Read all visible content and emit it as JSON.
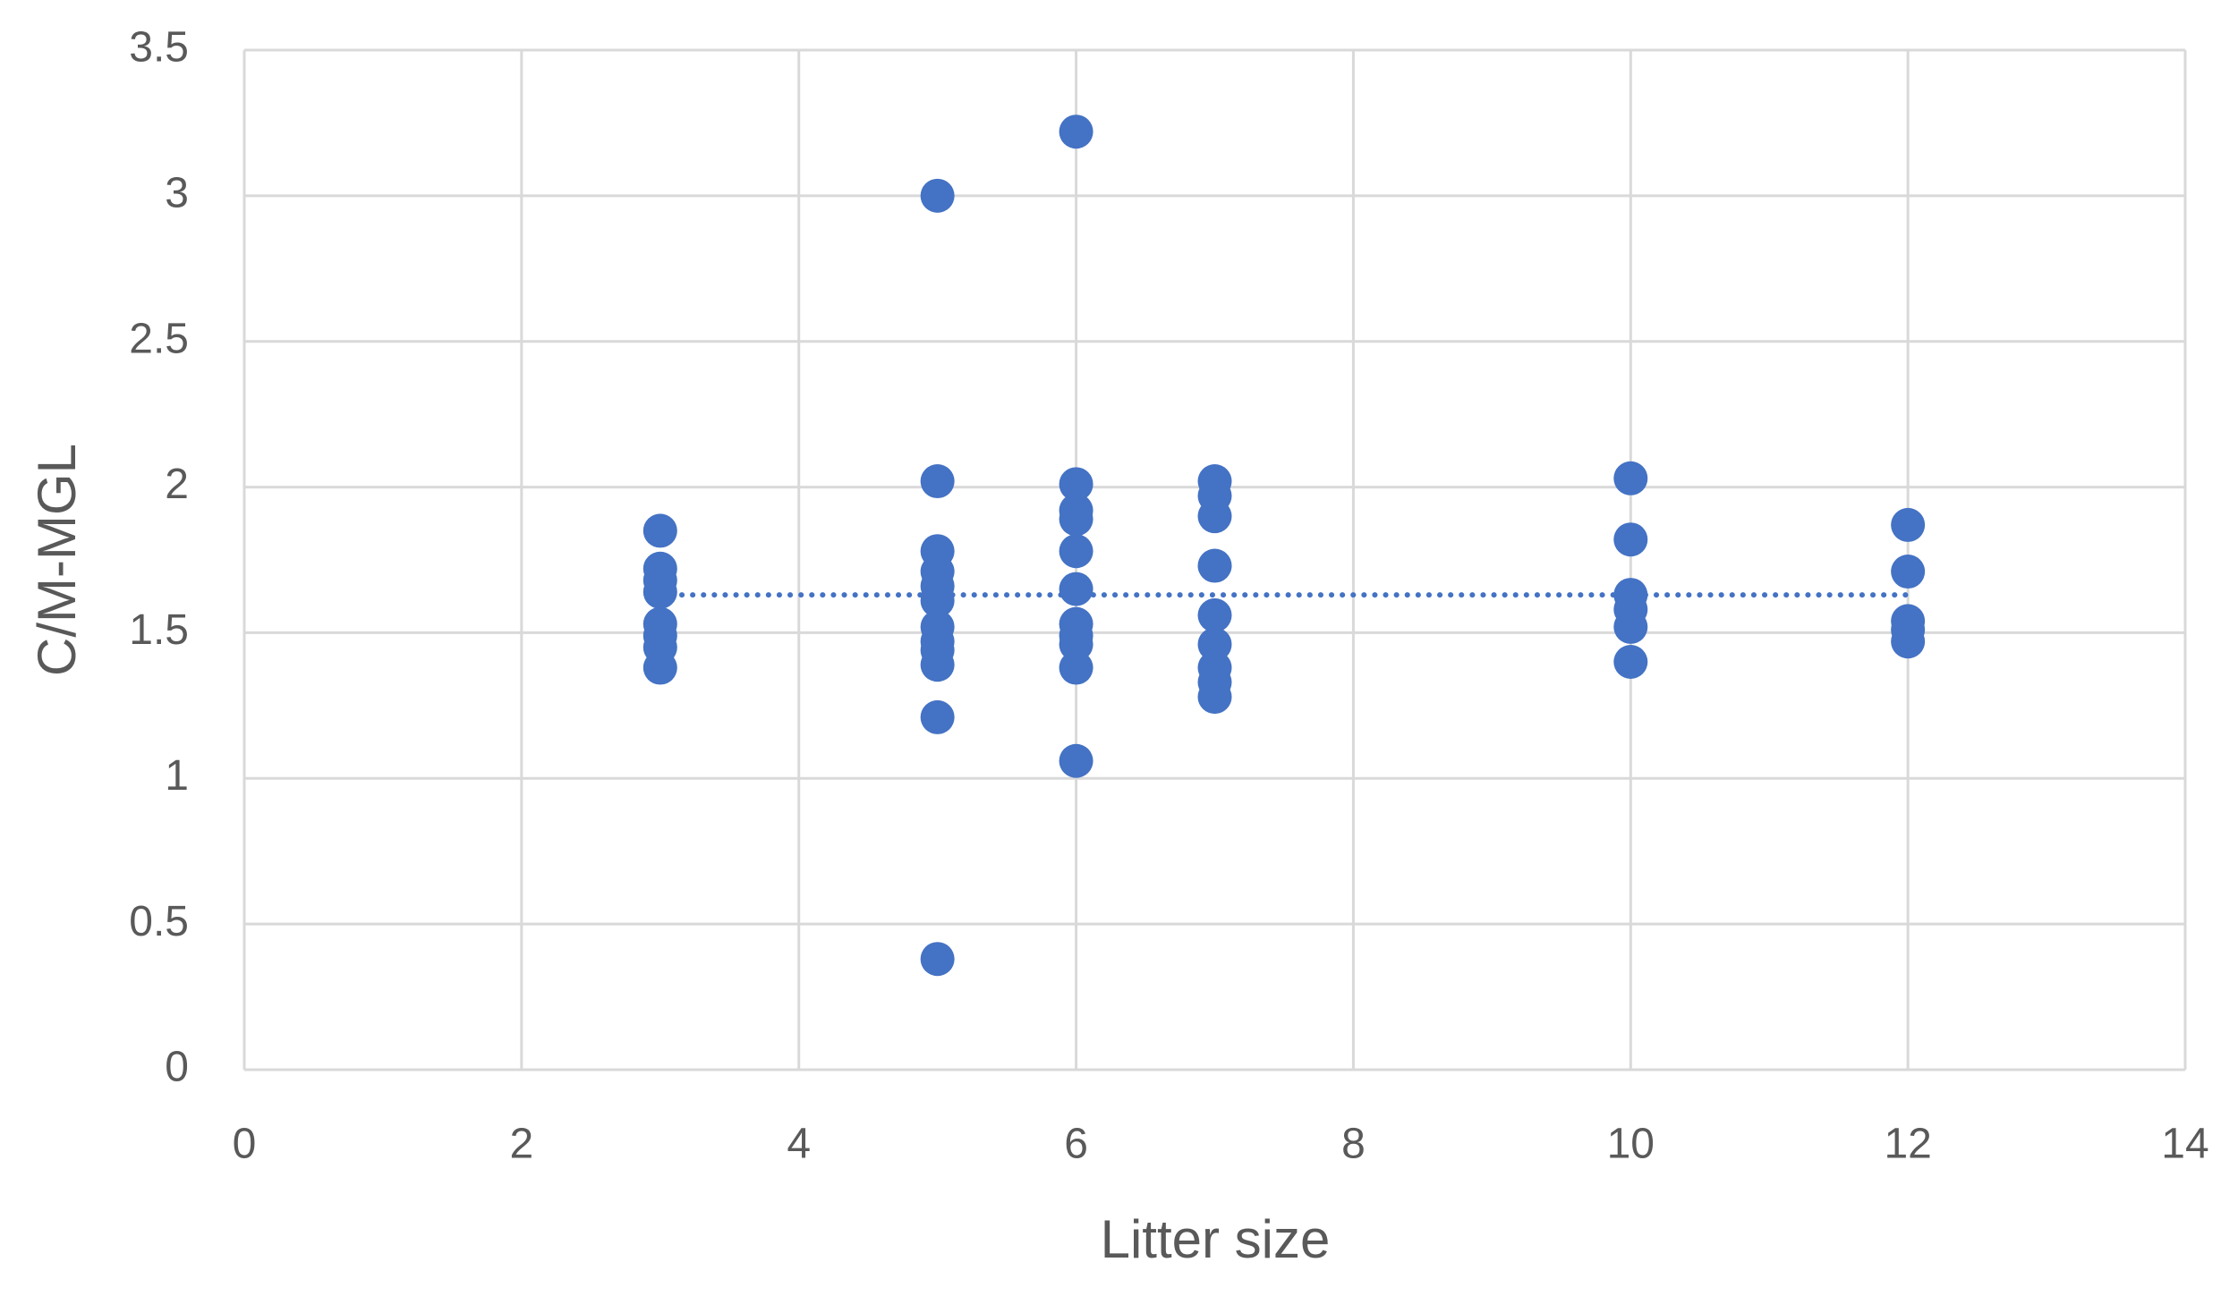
{
  "chart_data": {
    "type": "scatter",
    "xlabel": "Litter size",
    "ylabel": "C/M-MGL",
    "x": [
      3,
      3,
      3,
      3,
      3,
      3,
      3,
      3,
      5,
      5,
      5,
      5,
      5,
      5,
      5,
      5,
      5,
      5,
      5,
      5,
      6,
      6,
      6,
      6,
      6,
      6,
      6,
      6,
      6,
      6,
      6,
      7,
      7,
      7,
      7,
      7,
      7,
      7,
      7,
      7,
      10,
      10,
      10,
      10,
      10,
      10,
      12,
      12,
      12,
      12,
      12
    ],
    "values": [
      1.85,
      1.72,
      1.68,
      1.64,
      1.53,
      1.49,
      1.45,
      1.38,
      3.0,
      2.02,
      1.78,
      1.71,
      1.66,
      1.61,
      1.52,
      1.47,
      1.44,
      1.39,
      1.21,
      0.38,
      3.22,
      2.01,
      1.92,
      1.89,
      1.78,
      1.65,
      1.53,
      1.49,
      1.46,
      1.38,
      1.06,
      2.02,
      1.97,
      1.9,
      1.73,
      1.56,
      1.46,
      1.38,
      1.33,
      1.28,
      2.03,
      1.82,
      1.63,
      1.58,
      1.52,
      1.4,
      1.87,
      1.71,
      1.54,
      1.51,
      1.47
    ],
    "color": "#4472c4",
    "trendline": {
      "x": [
        3,
        12
      ],
      "values": [
        1.63,
        1.63
      ],
      "style": "dotted"
    },
    "xlim": [
      0,
      14
    ],
    "xticks": [
      0,
      2,
      4,
      6,
      8,
      10,
      12,
      14
    ],
    "ylim": [
      0,
      3.5
    ],
    "yticks": [
      0,
      0.5,
      1,
      1.5,
      2,
      2.5,
      3,
      3.5
    ],
    "grid": true
  }
}
